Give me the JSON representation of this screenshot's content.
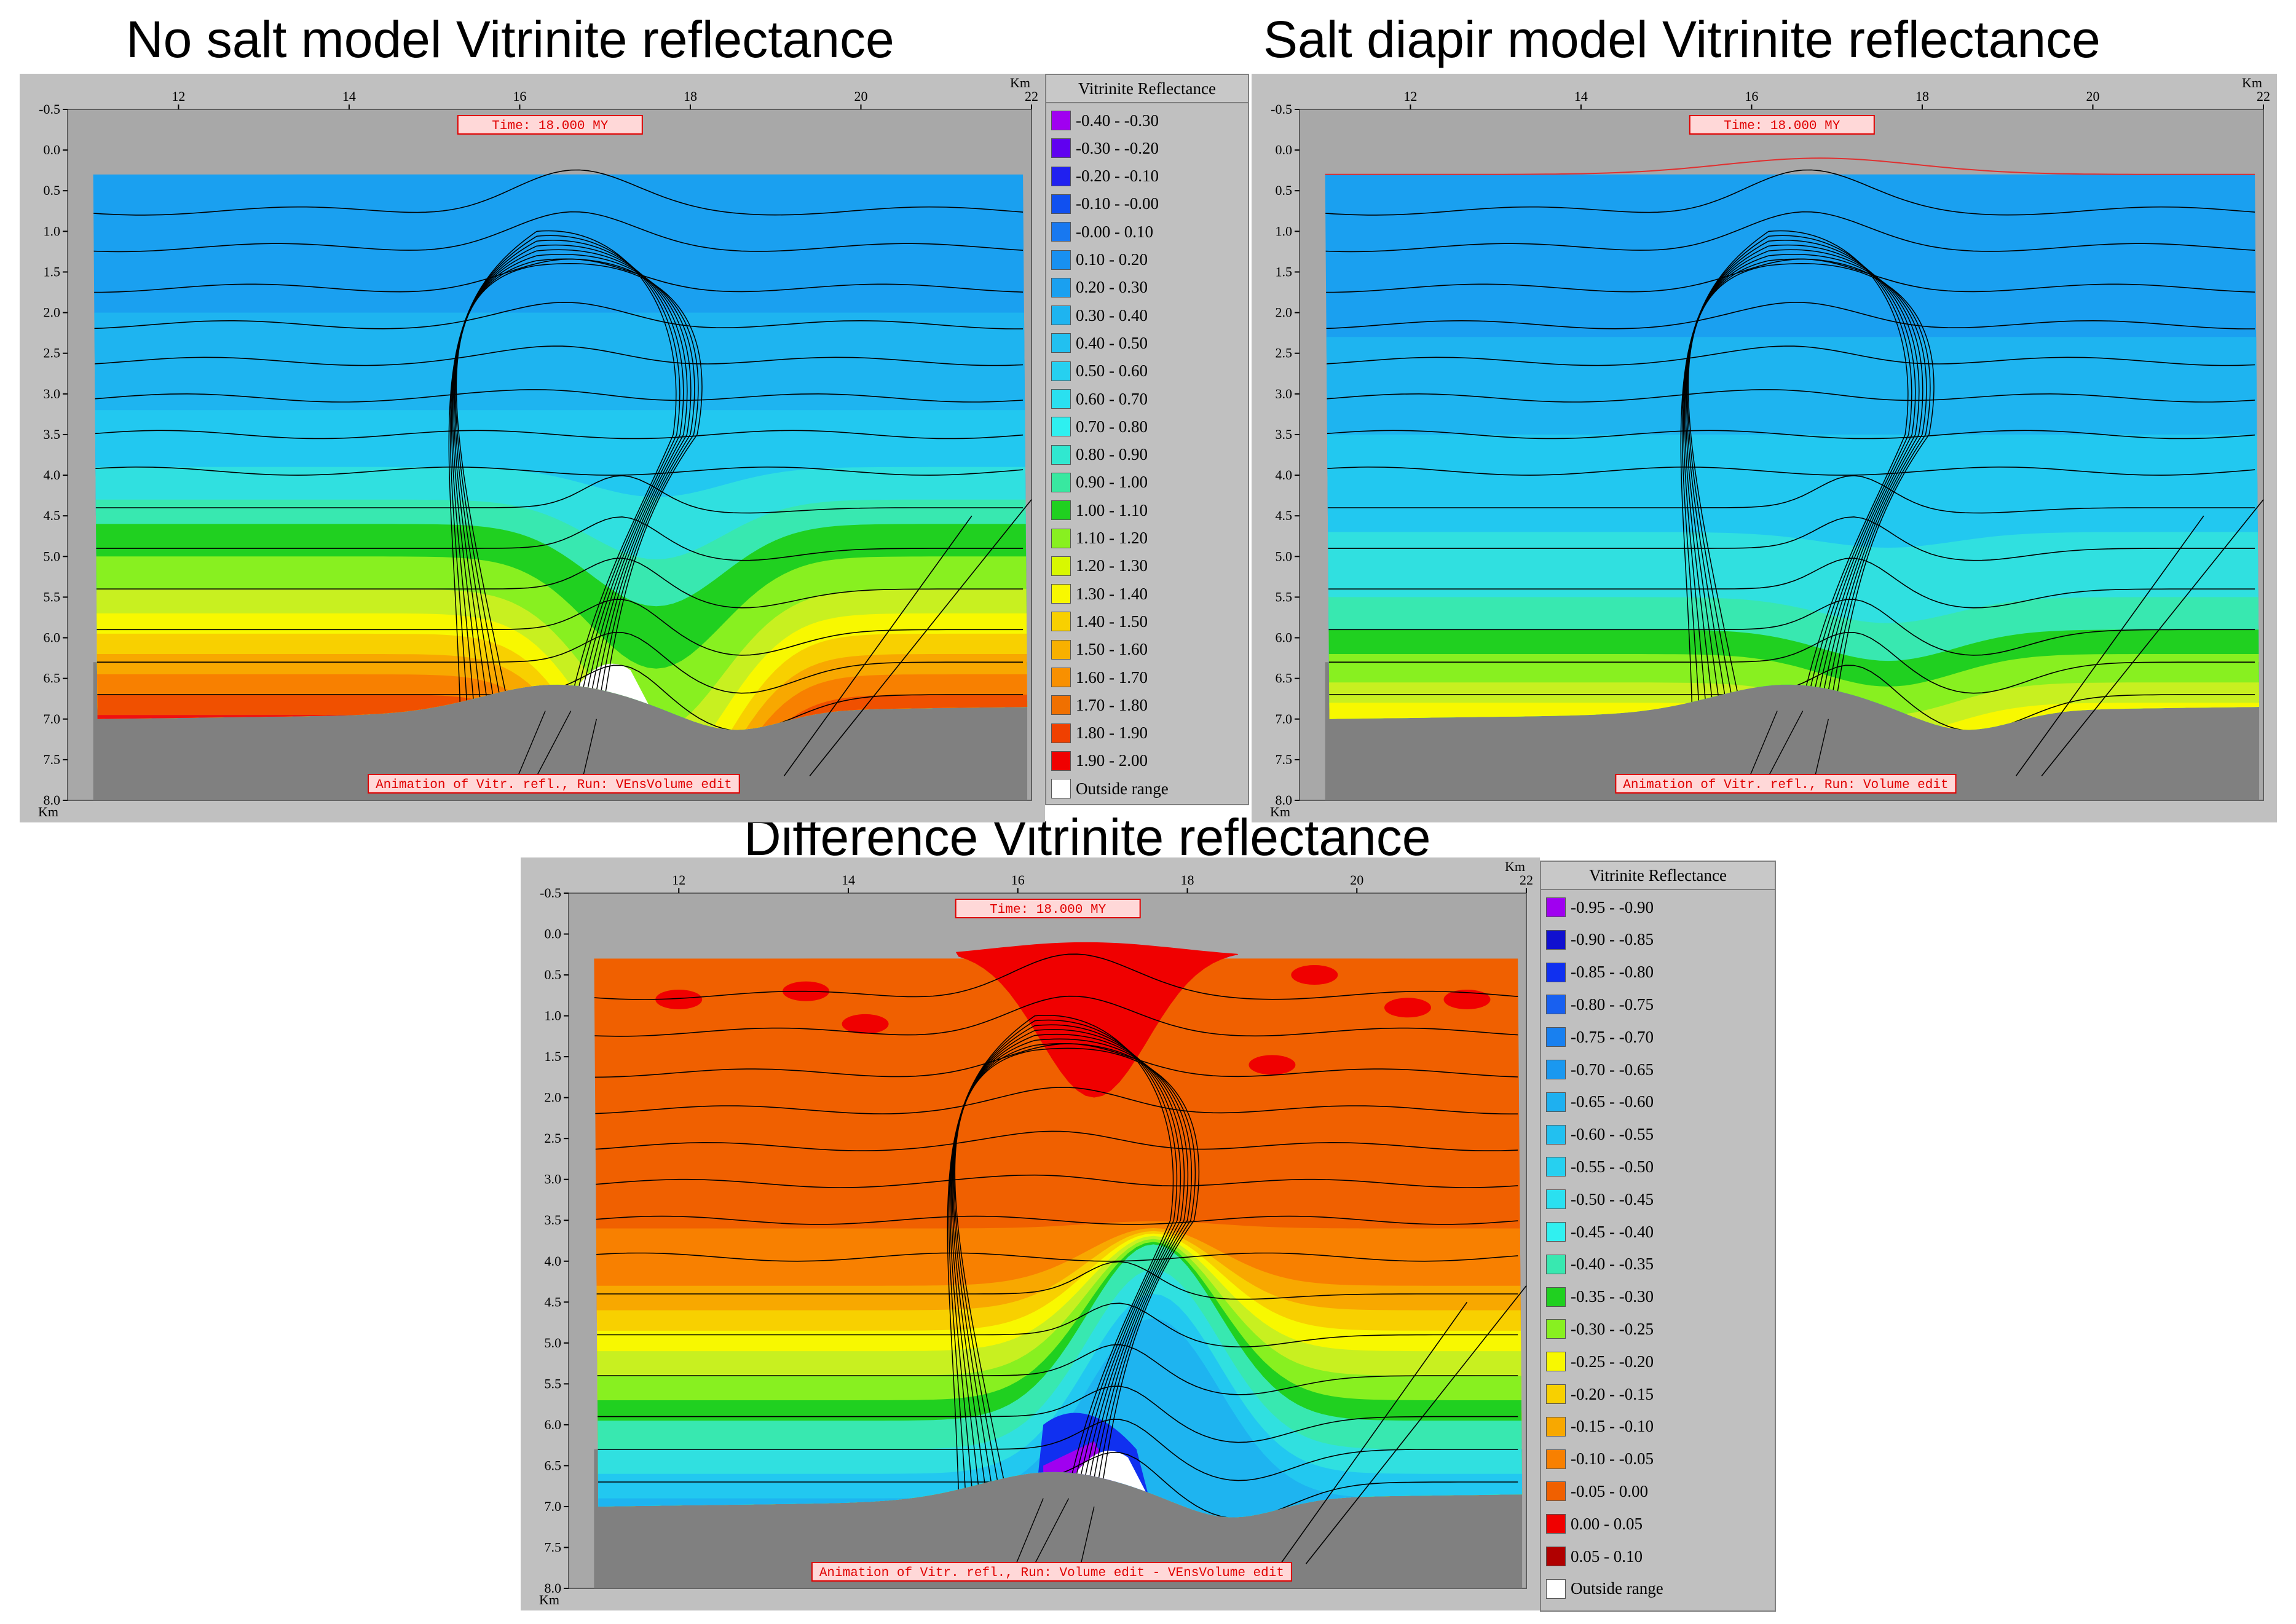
{
  "titles": {
    "top_left": "No salt model Vitrinite reflectance",
    "top_right": "Salt diapir model Vitrinite reflectance",
    "bottom": "Difference Vitrinite reflectance"
  },
  "chart_data": [
    {
      "type": "heatmap",
      "name": "no-salt",
      "title": "No salt model Vitrinite reflectance",
      "x_ticks": [
        "12",
        "14",
        "16",
        "18",
        "20",
        "22"
      ],
      "x_unit": "Km",
      "y_ticks": [
        "-0.5",
        "0.0",
        "0.5",
        "1.0",
        "1.5",
        "2.0",
        "2.5",
        "3.0",
        "3.5",
        "4.0",
        "4.5",
        "5.0",
        "5.5",
        "6.0",
        "6.5",
        "7.0",
        "7.5",
        "8.0"
      ],
      "y_unit": "Km",
      "xlim": [
        10.7,
        22
      ],
      "ylim": [
        -0.5,
        8.0
      ],
      "time_label": "Time:    18.000 MY",
      "caption": "Animation of Vitr. refl., Run: VEnsVolume edit",
      "bands": [
        {
          "depth": 0.3,
          "color": "#1aa0f0"
        },
        {
          "depth": 2.0,
          "color": "#1eb4f0"
        },
        {
          "depth": 3.2,
          "color": "#22c8f0"
        },
        {
          "depth": 3.9,
          "color": "#30e0e0"
        },
        {
          "depth": 4.3,
          "color": "#38e8b0"
        },
        {
          "depth": 4.6,
          "color": "#20d020"
        },
        {
          "depth": 5.0,
          "color": "#88f020"
        },
        {
          "depth": 5.4,
          "color": "#c8f020"
        },
        {
          "depth": 5.7,
          "color": "#f8f800"
        },
        {
          "depth": 5.95,
          "color": "#f8d000"
        },
        {
          "depth": 6.2,
          "color": "#f8a800"
        },
        {
          "depth": 6.45,
          "color": "#f88000"
        },
        {
          "depth": 6.7,
          "color": "#f05000"
        },
        {
          "depth": 6.95,
          "color": "#f01010"
        }
      ],
      "arch_shift": 2.3,
      "has_white_zone": true
    },
    {
      "type": "heatmap",
      "name": "salt-diapir",
      "title": "Salt diapir model Vitrinite reflectance",
      "x_ticks": [
        "12",
        "14",
        "16",
        "18",
        "20",
        "22"
      ],
      "x_unit": "Km",
      "y_ticks": [
        "-0.5",
        "0.0",
        "0.5",
        "1.0",
        "1.5",
        "2.0",
        "2.5",
        "3.0",
        "3.5",
        "4.0",
        "4.5",
        "5.0",
        "5.5",
        "6.0",
        "6.5",
        "7.0",
        "7.5",
        "8.0"
      ],
      "y_unit": "Km",
      "xlim": [
        10.7,
        22
      ],
      "ylim": [
        -0.5,
        8.0
      ],
      "time_label": "Time:    18.000 MY",
      "caption": "Animation of Vitr. refl., Run: Volume edit",
      "bands": [
        {
          "depth": 0.3,
          "color": "#1aa0f0"
        },
        {
          "depth": 2.3,
          "color": "#1eb4f0"
        },
        {
          "depth": 3.5,
          "color": "#22c8f0"
        },
        {
          "depth": 4.7,
          "color": "#30e0e0"
        },
        {
          "depth": 5.5,
          "color": "#38e8b0"
        },
        {
          "depth": 5.9,
          "color": "#20d020"
        },
        {
          "depth": 6.2,
          "color": "#88f020"
        },
        {
          "depth": 6.55,
          "color": "#c8f020"
        },
        {
          "depth": 6.8,
          "color": "#f8f800"
        },
        {
          "depth": 7.05,
          "color": "#f8d000"
        },
        {
          "depth": 7.25,
          "color": "#f8a800"
        }
      ],
      "arch_shift": 0.4,
      "has_white_zone": false
    },
    {
      "type": "heatmap",
      "name": "difference",
      "title": "Difference Vitrinite reflectance",
      "x_ticks": [
        "12",
        "14",
        "16",
        "18",
        "20",
        "22"
      ],
      "x_unit": "Km",
      "y_ticks": [
        "-0.5",
        "0.0",
        "0.5",
        "1.0",
        "1.5",
        "2.0",
        "2.5",
        "3.0",
        "3.5",
        "4.0",
        "4.5",
        "5.0",
        "5.5",
        "6.0",
        "6.5",
        "7.0",
        "7.5",
        "8.0"
      ],
      "y_unit": "Km",
      "xlim": [
        10.7,
        22
      ],
      "ylim": [
        -0.5,
        8.0
      ],
      "time_label": "Time:    18.000 MY",
      "caption": "Animation of Vitr. refl., Run: Volume edit - VEnsVolume edit",
      "bands": [
        {
          "depth": 0.3,
          "color": "#f06000"
        },
        {
          "depth": 3.6,
          "color": "#f88000"
        },
        {
          "depth": 4.3,
          "color": "#f8a800"
        },
        {
          "depth": 4.6,
          "color": "#f8d000"
        },
        {
          "depth": 4.85,
          "color": "#f8f800"
        },
        {
          "depth": 5.1,
          "color": "#c8f020"
        },
        {
          "depth": 5.4,
          "color": "#88f020"
        },
        {
          "depth": 5.7,
          "color": "#20d020"
        },
        {
          "depth": 5.95,
          "color": "#38e8b0"
        },
        {
          "depth": 6.3,
          "color": "#30e0e0"
        },
        {
          "depth": 6.6,
          "color": "#22c8f0"
        },
        {
          "depth": 6.9,
          "color": "#1eb4f0"
        }
      ],
      "arch_shift": -2.2,
      "has_white_zone": true,
      "red_cap": true
    }
  ],
  "legend_top": {
    "title": "Vitrinite Reflectance",
    "items": [
      {
        "label": "-0.40 - -0.30",
        "color": "#a000f0"
      },
      {
        "label": "-0.30 - -0.20",
        "color": "#6000f0"
      },
      {
        "label": "-0.20 - -0.10",
        "color": "#2020f0"
      },
      {
        "label": "-0.10 - -0.00",
        "color": "#1050f0"
      },
      {
        "label": "-0.00 -  0.10",
        "color": "#1878f0"
      },
      {
        "label": "0.10 -  0.20",
        "color": "#1890f0"
      },
      {
        "label": "0.20 -  0.30",
        "color": "#1aa0f0"
      },
      {
        "label": "0.30 -  0.40",
        "color": "#1eb4f0"
      },
      {
        "label": "0.40 -  0.50",
        "color": "#22c0f0"
      },
      {
        "label": "0.50 -  0.60",
        "color": "#26d0f0"
      },
      {
        "label": "0.60 -  0.70",
        "color": "#2ae0f0"
      },
      {
        "label": "0.70 -  0.80",
        "color": "#2ef0f0"
      },
      {
        "label": "0.80 -  0.90",
        "color": "#30e8d0"
      },
      {
        "label": "0.90 -  1.00",
        "color": "#38e8a0"
      },
      {
        "label": "1.00 -  1.10",
        "color": "#20d020"
      },
      {
        "label": "1.10 -  1.20",
        "color": "#88f020"
      },
      {
        "label": "1.20 -  1.30",
        "color": "#d8f800"
      },
      {
        "label": "1.30 -  1.40",
        "color": "#f8f800"
      },
      {
        "label": "1.40 -  1.50",
        "color": "#f8d000"
      },
      {
        "label": "1.50 -  1.60",
        "color": "#f8b000"
      },
      {
        "label": "1.60 -  1.70",
        "color": "#f89000"
      },
      {
        "label": "1.70 -  1.80",
        "color": "#f07000"
      },
      {
        "label": "1.80 -  1.90",
        "color": "#f04000"
      },
      {
        "label": "1.90 -  2.00",
        "color": "#f00000"
      },
      {
        "label": "Outside range",
        "color": "#ffffff"
      }
    ]
  },
  "legend_bottom": {
    "title": "Vitrinite Reflectance",
    "items": [
      {
        "label": "-0.95 - -0.90",
        "color": "#a000f0"
      },
      {
        "label": "-0.90 - -0.85",
        "color": "#1010d0"
      },
      {
        "label": "-0.85 - -0.80",
        "color": "#1030f0"
      },
      {
        "label": "-0.80 - -0.75",
        "color": "#1860f0"
      },
      {
        "label": "-0.75 - -0.70",
        "color": "#1880f0"
      },
      {
        "label": "-0.70 - -0.65",
        "color": "#1a98f0"
      },
      {
        "label": "-0.65 - -0.60",
        "color": "#1eb0f0"
      },
      {
        "label": "-0.60 - -0.55",
        "color": "#22c0f0"
      },
      {
        "label": "-0.55 - -0.50",
        "color": "#26d0f0"
      },
      {
        "label": "-0.50 - -0.45",
        "color": "#2ae0f0"
      },
      {
        "label": "-0.45 - -0.40",
        "color": "#30f0f0"
      },
      {
        "label": "-0.40 - -0.35",
        "color": "#38e8b0"
      },
      {
        "label": "-0.35 - -0.30",
        "color": "#20d020"
      },
      {
        "label": "-0.30 - -0.25",
        "color": "#88f020"
      },
      {
        "label": "-0.25 - -0.20",
        "color": "#f8f800"
      },
      {
        "label": "-0.20 - -0.15",
        "color": "#f8d000"
      },
      {
        "label": "-0.15 - -0.10",
        "color": "#f8a800"
      },
      {
        "label": "-0.10 - -0.05",
        "color": "#f88000"
      },
      {
        "label": "-0.05 -  0.00",
        "color": "#f06000"
      },
      {
        "label": "0.00 -  0.05",
        "color": "#f00000"
      },
      {
        "label": "0.05 -  0.10",
        "color": "#b00000"
      },
      {
        "label": "Outside range",
        "color": "#ffffff"
      }
    ]
  },
  "colors": {
    "basement": "#808080",
    "frame": "#c0c0c0",
    "plot_bg": "#a8a8a8",
    "surface_line": "#e03030"
  }
}
